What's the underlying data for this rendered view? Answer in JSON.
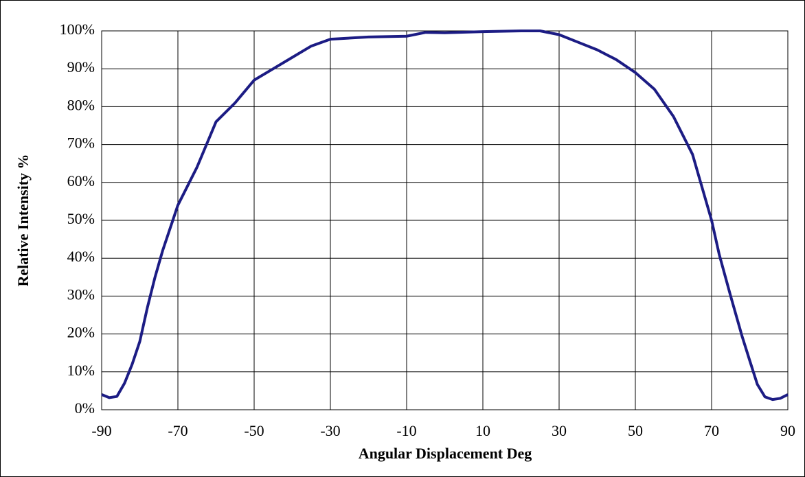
{
  "chart_data": {
    "type": "line",
    "x_label": "Angular Displacement  Deg",
    "y_label": "Relative Intensity %",
    "x": [
      -90,
      -88,
      -86,
      -84,
      -82,
      -80,
      -78,
      -76,
      -74,
      -72,
      -70,
      -65,
      -60,
      -55,
      -50,
      -45,
      -40,
      -35,
      -30,
      -20,
      -10,
      -5,
      0,
      10,
      20,
      25,
      30,
      35,
      40,
      45,
      50,
      55,
      60,
      65,
      70,
      72,
      75,
      78,
      80,
      82,
      84,
      86,
      88,
      90
    ],
    "values": [
      4,
      3.2,
      3.5,
      7,
      12,
      18,
      27,
      35,
      42,
      48,
      54,
      64,
      76,
      81,
      87,
      90,
      93,
      96,
      97.8,
      98.4,
      98.6,
      99.6,
      99.5,
      99.8,
      100,
      100,
      99,
      97,
      95,
      92.4,
      89,
      84.6,
      77.4,
      67.4,
      50,
      41,
      30,
      19.4,
      13,
      6.7,
      3.4,
      2.7,
      3,
      4
    ],
    "color": "#1c1c84",
    "xlim": [
      -90,
      90
    ],
    "xticks": [
      -90,
      -70,
      -50,
      -30,
      -10,
      10,
      30,
      50,
      70,
      90
    ],
    "ylim": [
      0,
      100
    ],
    "yticks": [
      {
        "value": 0,
        "label": "0%"
      },
      {
        "value": 10,
        "label": "10%"
      },
      {
        "value": 20,
        "label": "20%"
      },
      {
        "value": 30,
        "label": "30%"
      },
      {
        "value": 40,
        "label": "40%"
      },
      {
        "value": 50,
        "label": "50%"
      },
      {
        "value": 60,
        "label": "60%"
      },
      {
        "value": 70,
        "label": "70%"
      },
      {
        "value": 80,
        "label": "80%"
      },
      {
        "value": 90,
        "label": "90%"
      },
      {
        "value": 100,
        "label": "100%"
      }
    ],
    "grid": true
  }
}
